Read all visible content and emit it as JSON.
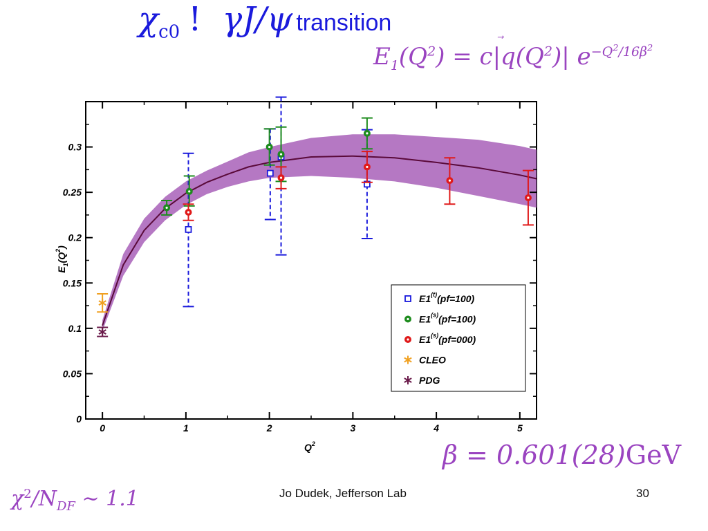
{
  "slide": {
    "title_chi": "χc0",
    "title_bang": "!",
    "title_gamma": "γJ/ψ",
    "title_word": "transition",
    "formula_e1": "E1(Q2) = c|q(Q2)| e−Q2/16β2",
    "beta": "β = 0.601(28)GeV",
    "chi2": "χ2/NDF ∼ 1.1",
    "footer": "Jo Dudek, Jefferson Lab",
    "page_number": "30"
  },
  "chart_data": {
    "type": "scatter",
    "xlabel": "Q2",
    "ylabel": "E1(Q2)",
    "xlim": [
      -0.2,
      5.2
    ],
    "ylim": [
      0,
      0.35
    ],
    "x_ticks": [
      0,
      1,
      2,
      3,
      4,
      5
    ],
    "y_ticks": [
      0,
      0.05,
      0.1,
      0.15,
      0.2,
      0.25,
      0.3
    ],
    "x_tick_labels": [
      "0",
      "1",
      "2",
      "3",
      "4",
      "5"
    ],
    "y_tick_labels": [
      "0",
      "0.05",
      "0.1",
      "0.15",
      "0.2",
      "0.25",
      "0.3"
    ],
    "legend_position": "lower-right",
    "series": [
      {
        "name": "E1(t)(pf=100)",
        "legend_main": "E1",
        "legend_sup": "(t)",
        "legend_tail": "(pf=100)",
        "color": "#1a1adc",
        "marker": "square",
        "error_style": "dashed",
        "points": [
          {
            "x": 1.03,
            "y": 0.209,
            "err_lo": 0.085,
            "err_hi": 0.084
          },
          {
            "x": 2.01,
            "y": 0.271,
            "err_lo": 0.051,
            "err_hi": 0.049
          },
          {
            "x": 2.14,
            "y": 0.289,
            "err_lo": 0.108,
            "err_hi": 0.066
          },
          {
            "x": 3.17,
            "y": 0.259,
            "err_lo": 0.06,
            "err_hi": 0.06
          }
        ]
      },
      {
        "name": "E1(s)(pf=100)",
        "legend_main": "E1",
        "legend_sup": "(s)",
        "legend_tail": "(pf=100)",
        "color": "#1e8c1e",
        "marker": "circle",
        "error_style": "solid",
        "points": [
          {
            "x": 0.77,
            "y": 0.233,
            "err_lo": 0.008,
            "err_hi": 0.008
          },
          {
            "x": 1.04,
            "y": 0.251,
            "err_lo": 0.016,
            "err_hi": 0.017
          },
          {
            "x": 2.0,
            "y": 0.3,
            "err_lo": 0.02,
            "err_hi": 0.02
          },
          {
            "x": 2.14,
            "y": 0.292,
            "err_lo": 0.03,
            "err_hi": 0.03
          },
          {
            "x": 3.17,
            "y": 0.315,
            "err_lo": 0.017,
            "err_hi": 0.017
          }
        ]
      },
      {
        "name": "E1(s)(pf=000)",
        "legend_main": "E1",
        "legend_sup": "(s)",
        "legend_tail": "(pf=000)",
        "color": "#e01a1a",
        "marker": "circle",
        "error_style": "solid",
        "points": [
          {
            "x": 1.03,
            "y": 0.228,
            "err_lo": 0.009,
            "err_hi": 0.009
          },
          {
            "x": 2.14,
            "y": 0.266,
            "err_lo": 0.012,
            "err_hi": 0.012
          },
          {
            "x": 3.17,
            "y": 0.278,
            "err_lo": 0.017,
            "err_hi": 0.017
          },
          {
            "x": 4.16,
            "y": 0.263,
            "err_lo": 0.026,
            "err_hi": 0.025
          },
          {
            "x": 5.1,
            "y": 0.244,
            "err_lo": 0.03,
            "err_hi": 0.03
          }
        ]
      },
      {
        "name": "CLEO",
        "color": "#f0a020",
        "marker": "asterisk",
        "error_style": "solid",
        "points": [
          {
            "x": 0.0,
            "y": 0.128,
            "err_lo": 0.01,
            "err_hi": 0.01
          }
        ]
      },
      {
        "name": "PDG",
        "color": "#6a1a4a",
        "marker": "asterisk",
        "error_style": "solid",
        "points": [
          {
            "x": 0.0,
            "y": 0.096,
            "err_lo": 0.005,
            "err_hi": 0.005
          }
        ]
      }
    ],
    "fit": {
      "line_color": "#5a0a3a",
      "band_color": "#a860b8",
      "x": [
        0.0,
        0.25,
        0.5,
        0.75,
        1.0,
        1.25,
        1.5,
        1.75,
        2.0,
        2.5,
        3.0,
        3.5,
        4.0,
        4.5,
        5.0,
        5.2
      ],
      "y": [
        0.103,
        0.17,
        0.208,
        0.232,
        0.249,
        0.261,
        0.27,
        0.278,
        0.283,
        0.289,
        0.29,
        0.288,
        0.283,
        0.277,
        0.269,
        0.265
      ],
      "y_lo": [
        0.097,
        0.158,
        0.195,
        0.219,
        0.236,
        0.248,
        0.256,
        0.262,
        0.266,
        0.268,
        0.266,
        0.262,
        0.255,
        0.246,
        0.237,
        0.233
      ],
      "y_hi": [
        0.109,
        0.182,
        0.221,
        0.245,
        0.262,
        0.274,
        0.284,
        0.294,
        0.3,
        0.31,
        0.314,
        0.314,
        0.311,
        0.308,
        0.301,
        0.297
      ]
    }
  }
}
